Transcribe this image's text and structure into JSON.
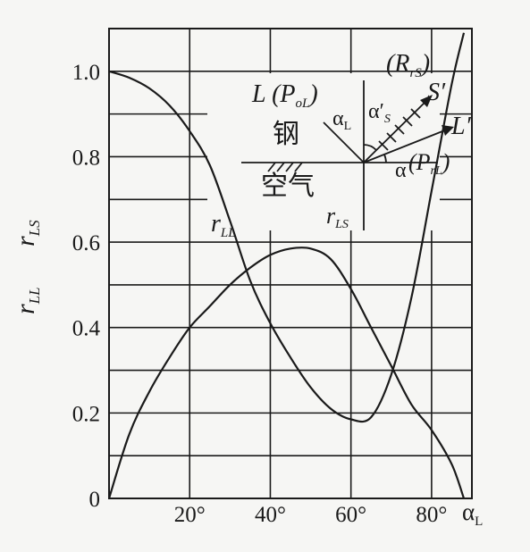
{
  "chart_data": {
    "type": "line",
    "xlabel": "α",
    "xlabel_sub": "L",
    "ylabel_top": "r",
    "ylabel_top_sub": "LS",
    "ylabel_bottom": "r",
    "ylabel_bottom_sub": "LL",
    "xlim": [
      0,
      90
    ],
    "ylim": [
      0,
      1.1
    ],
    "x_ticks": [
      {
        "value": 20,
        "label": "20°"
      },
      {
        "value": 40,
        "label": "40°"
      },
      {
        "value": 60,
        "label": "60°"
      },
      {
        "value": 80,
        "label": "80°"
      }
    ],
    "y_ticks": [
      {
        "value": 0,
        "label": "0"
      },
      {
        "value": 0.2,
        "label": "0.2"
      },
      {
        "value": 0.4,
        "label": "0.4"
      },
      {
        "value": 0.6,
        "label": "0.6"
      },
      {
        "value": 0.8,
        "label": "0.8"
      },
      {
        "value": 1.0,
        "label": "1.0"
      }
    ],
    "x_grid": [
      20,
      40,
      60,
      80
    ],
    "y_grid": [
      0.1,
      0.2,
      0.3,
      0.4,
      0.5,
      0.6,
      0.7,
      0.8,
      0.9,
      1.0
    ],
    "grid": true,
    "series": [
      {
        "name": "r",
        "name_sub": "LL",
        "x": [
          0,
          5,
          10,
          15,
          20,
          25,
          30,
          35,
          40,
          45,
          50,
          55,
          60,
          65,
          70,
          75,
          80,
          85,
          88
        ],
        "y": [
          1.0,
          0.985,
          0.96,
          0.92,
          0.86,
          0.78,
          0.65,
          0.51,
          0.41,
          0.33,
          0.26,
          0.21,
          0.185,
          0.19,
          0.29,
          0.47,
          0.72,
          0.97,
          1.09
        ]
      },
      {
        "name": "r",
        "name_sub": "LS",
        "x": [
          0,
          5,
          10,
          15,
          20,
          25,
          30,
          35,
          40,
          45,
          50,
          55,
          60,
          65,
          70,
          75,
          80,
          85,
          88
        ],
        "y": [
          0,
          0.15,
          0.25,
          0.33,
          0.4,
          0.45,
          0.5,
          0.54,
          0.57,
          0.585,
          0.585,
          0.56,
          0.49,
          0.4,
          0.31,
          0.22,
          0.16,
          0.08,
          0
        ]
      }
    ],
    "inset": {
      "label_R": "(R",
      "label_R_sub": "rS",
      "label_R_close": ")",
      "label_L": "L (P",
      "label_L_sub": "oL",
      "label_L_close": ")",
      "label_alpha_L": "α",
      "label_alpha_L_sub": "L",
      "label_alpha_S": "α′",
      "label_alpha_S_sub": "S",
      "label_S": "S′",
      "label_Lp": "L′",
      "label_alpha": "α",
      "label_P": "(P",
      "label_P_sub": "rL",
      "label_P_close": ")",
      "label_steel": "钢",
      "label_air": "空气",
      "label_rLS": "r",
      "label_rLS_sub": "LS"
    }
  }
}
